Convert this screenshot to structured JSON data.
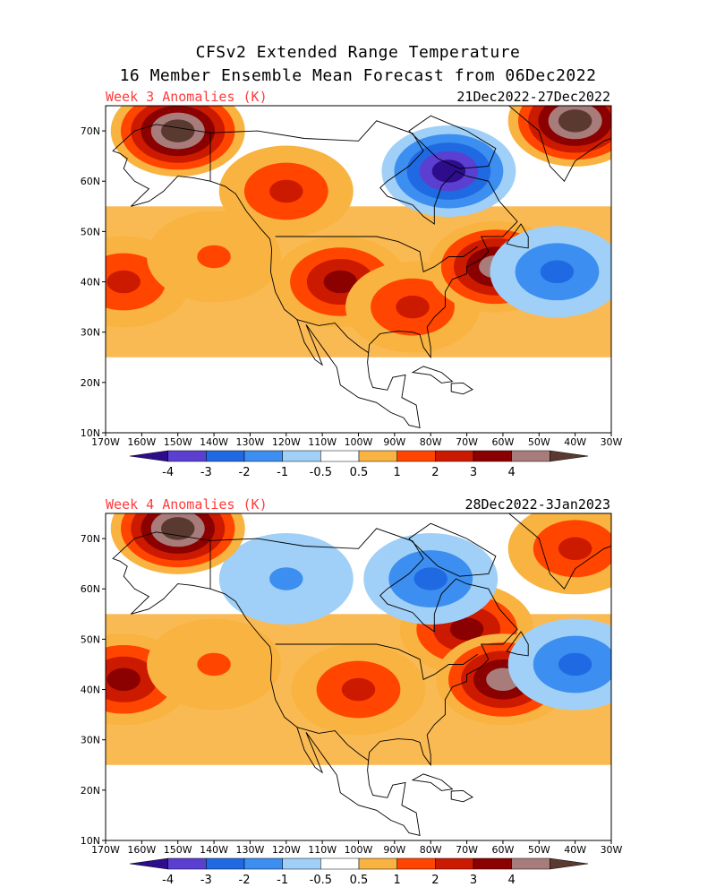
{
  "title": {
    "line1": "CFSv2 Extended Range Temperature",
    "line2": "16 Member Ensemble Mean Forecast from 06Dec2022"
  },
  "colors": {
    "neg4": "#2d0d8c",
    "neg3": "#5a3fd1",
    "neg2": "#1f6ae3",
    "neg1": "#3c8ef0",
    "neg05": "#a0d0f7",
    "zero": "#ffffff",
    "pos05": "#f9b340",
    "pos1": "#ff4500",
    "pos2": "#cc1a00",
    "pos3": "#8b0000",
    "pos4": "#a87c7a",
    "pos5": "#5a3a30"
  },
  "colorbar_labels": [
    "-4",
    "-3",
    "-2",
    "-1",
    "-0.5",
    "0.5",
    "1",
    "2",
    "3",
    "4"
  ],
  "lon_ticks": [
    "170W",
    "160W",
    "150W",
    "140W",
    "130W",
    "120W",
    "110W",
    "100W",
    "90W",
    "80W",
    "70W",
    "60W",
    "50W",
    "40W",
    "30W"
  ],
  "lat_ticks": [
    "70N",
    "60N",
    "50N",
    "40N",
    "30N",
    "20N",
    "10N"
  ],
  "panels": [
    {
      "label": "Week 3 Anomalies (K)",
      "date": "21Dec2022-27Dec2022",
      "features": [
        {
          "lon": -165,
          "lat": 40,
          "level": "pos2"
        },
        {
          "lon": -140,
          "lat": 45,
          "level": "pos1"
        },
        {
          "lon": -105,
          "lat": 40,
          "level": "pos3"
        },
        {
          "lon": -85,
          "lat": 35,
          "level": "pos2"
        },
        {
          "lon": -120,
          "lat": 58,
          "level": "pos2"
        },
        {
          "lon": -150,
          "lat": 70,
          "level": "pos5"
        },
        {
          "lon": -75,
          "lat": 62,
          "level": "neg4"
        },
        {
          "lon": -62,
          "lat": 43,
          "level": "pos4"
        },
        {
          "lon": -45,
          "lat": 42,
          "level": "neg2"
        },
        {
          "lon": -40,
          "lat": 72,
          "level": "pos5"
        }
      ]
    },
    {
      "label": "Week 4 Anomalies (K)",
      "date": "28Dec2022-3Jan2023",
      "features": [
        {
          "lon": -165,
          "lat": 42,
          "level": "pos3"
        },
        {
          "lon": -140,
          "lat": 45,
          "level": "pos1"
        },
        {
          "lon": -100,
          "lat": 40,
          "level": "pos2"
        },
        {
          "lon": -70,
          "lat": 52,
          "level": "pos3"
        },
        {
          "lon": -60,
          "lat": 42,
          "level": "pos4"
        },
        {
          "lon": -120,
          "lat": 62,
          "level": "neg1"
        },
        {
          "lon": -80,
          "lat": 62,
          "level": "neg2"
        },
        {
          "lon": -150,
          "lat": 72,
          "level": "pos5"
        },
        {
          "lon": -40,
          "lat": 45,
          "level": "neg2"
        },
        {
          "lon": -40,
          "lat": 68,
          "level": "pos2"
        }
      ]
    }
  ]
}
